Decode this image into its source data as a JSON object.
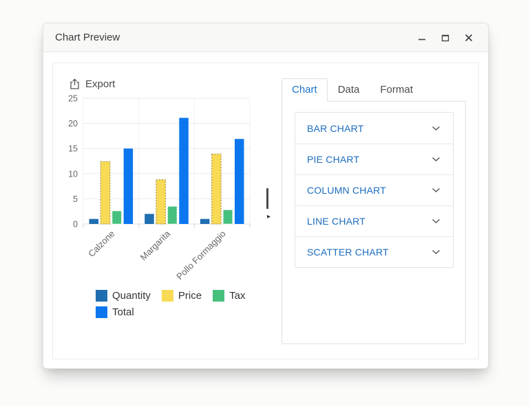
{
  "window": {
    "title": "Chart Preview"
  },
  "icons": {
    "minimize": "—",
    "maximize": "▢",
    "close": "✕",
    "export": "↥",
    "chevron_down": "⌄",
    "collapse_arrow": "▸"
  },
  "toolbar": {
    "export_label": "Export"
  },
  "chart_data": {
    "type": "bar",
    "title": "",
    "categories": [
      "Calzone",
      "Margarita",
      "Pollo Formaggio"
    ],
    "series": [
      {
        "name": "Quantity",
        "color": "#1f6eb0",
        "values": [
          1,
          2,
          1
        ],
        "border": null
      },
      {
        "name": "Price",
        "color": "#f8da55",
        "values": [
          12.4,
          8.8,
          13.9
        ],
        "border": {
          "color": "#a89a4d",
          "dash": "2,2",
          "width": 1.3
        }
      },
      {
        "name": "Tax",
        "color": "#46c07d",
        "values": [
          2.6,
          3.5,
          2.8
        ],
        "border": {
          "color": "#ffffff",
          "dash": "2,2",
          "width": 1
        }
      },
      {
        "name": "Total",
        "color": "#0c76ee",
        "values": [
          15,
          21.1,
          16.9
        ],
        "border": null
      }
    ],
    "ylim": [
      0,
      25
    ],
    "yticks": [
      0,
      5,
      10,
      15,
      20,
      25
    ],
    "grid": true,
    "legend_position": "bottom",
    "x_label_rotation": -45,
    "xlabel": "",
    "ylabel": ""
  },
  "panel": {
    "tabs": [
      {
        "label": "Chart",
        "active": true
      },
      {
        "label": "Data",
        "active": false
      },
      {
        "label": "Format",
        "active": false
      }
    ],
    "accordion": [
      {
        "label": "BAR CHART"
      },
      {
        "label": "PIE CHART"
      },
      {
        "label": "COLUMN CHART"
      },
      {
        "label": "LINE CHART"
      },
      {
        "label": "SCATTER CHART"
      }
    ]
  },
  "colors": {
    "tab_active_text": "#1a73c8",
    "accordion_text": "#1a6cbe",
    "grid_line": "#eaeaea",
    "axis_text": "#666666"
  }
}
